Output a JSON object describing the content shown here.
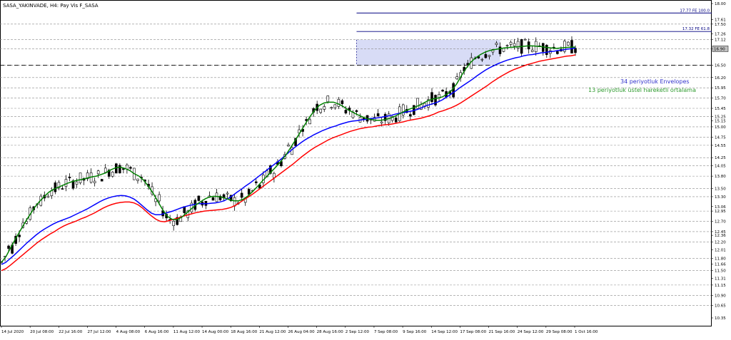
{
  "chart_data": {
    "type": "candlestick",
    "title": "SASA_YAKINVADE, H4: Pay Vis F_SASA",
    "y_axis": {
      "range": [
        10.35,
        18.0
      ],
      "ticks": [
        "18.00",
        "17.61",
        "17.50",
        "17.26",
        "17.12",
        "16.90",
        "16.50",
        "16.20",
        "15.95",
        "15.70",
        "15.45",
        "15.25",
        "15.15",
        "15.00",
        "14.75",
        "14.55",
        "14.25",
        "14.05",
        "13.80",
        "13.50",
        "13.30",
        "13.06",
        "12.95",
        "12.70",
        "12.45",
        "12.36",
        "12.20",
        "12.01",
        "11.80",
        "11.66",
        "11.50",
        "11.31",
        "11.15",
        "10.90",
        "10.65",
        "10.35"
      ],
      "dashed_levels": [
        17.5,
        17.12,
        16.9,
        16.5,
        16.2,
        15.95,
        15.7,
        15.45,
        15.25,
        15.0,
        14.75,
        14.55,
        14.25,
        14.05,
        13.8,
        13.5,
        13.3,
        12.95,
        12.7,
        12.45,
        12.2,
        11.8,
        11.5,
        11.15,
        10.9,
        10.65
      ]
    },
    "x_axis": {
      "labels": [
        "14 Jul 2020",
        "20 Jul 08:00",
        "22 Jul 16:00",
        "27 Jul 12:00",
        "4 Aug 08:00",
        "6 Aug 16:00",
        "11 Aug 12:00",
        "14 Aug 00:00",
        "18 Aug 16:00",
        "21 Aug 12:00",
        "26 Aug 04:00",
        "28 Aug 16:00",
        "2 Sep 12:00",
        "7 Sep 08:00",
        "9 Sep 16:00",
        "14 Sep 12:00",
        "17 Sep 08:00",
        "21 Sep 16:00",
        "24 Sep 12:00",
        "29 Sep 08:00",
        "1 Oct 16:00"
      ],
      "bar_count": 161
    },
    "series": [
      {
        "name": "34 periyotluk Envelopes",
        "color": "#0000ff",
        "values": [
          11.65,
          11.7,
          11.79,
          11.88,
          11.98,
          12.08,
          12.18,
          12.27,
          12.36,
          12.44,
          12.51,
          12.57,
          12.63,
          12.68,
          12.72,
          12.76,
          12.8,
          12.85,
          12.9,
          12.95,
          13.0,
          13.06,
          13.12,
          13.18,
          13.23,
          13.27,
          13.3,
          13.32,
          13.33,
          13.32,
          13.29,
          13.24,
          13.16,
          13.07,
          12.98,
          12.9,
          12.86,
          12.86,
          12.89,
          12.92,
          12.95,
          12.99,
          13.03,
          13.06,
          13.09,
          13.11,
          13.13,
          13.13,
          13.13,
          13.14,
          13.15,
          13.17,
          13.2,
          13.26,
          13.33,
          13.41,
          13.48,
          13.56,
          13.63,
          13.71,
          13.79,
          13.87,
          13.95,
          14.03,
          14.11,
          14.19,
          14.28,
          14.37,
          14.46,
          14.54,
          14.62,
          14.69,
          14.75,
          14.81,
          14.86,
          14.91,
          14.95,
          14.99,
          15.02,
          15.06,
          15.09,
          15.12,
          15.14,
          15.15,
          15.17,
          15.18,
          15.2,
          15.21,
          15.22,
          15.24,
          15.26,
          15.28,
          15.31,
          15.33,
          15.35,
          15.37,
          15.39,
          15.42,
          15.46,
          15.51,
          15.54,
          15.57,
          15.61,
          15.66,
          15.73,
          15.8,
          15.87,
          15.95,
          16.02,
          16.09,
          16.16,
          16.24,
          16.31,
          16.38,
          16.44,
          16.49,
          16.54,
          16.58,
          16.62,
          16.65,
          16.68,
          16.7,
          16.73,
          16.75,
          16.76,
          16.78,
          16.8,
          16.81,
          16.83,
          16.84,
          16.86,
          16.87,
          16.89,
          16.9,
          16.92
        ]
      },
      {
        "name": "",
        "color": "#ff0000",
        "values": [
          11.5,
          11.55,
          11.63,
          11.72,
          11.81,
          11.9,
          11.99,
          12.08,
          12.17,
          12.25,
          12.32,
          12.39,
          12.45,
          12.52,
          12.58,
          12.63,
          12.67,
          12.71,
          12.76,
          12.8,
          12.85,
          12.9,
          12.96,
          13.02,
          13.07,
          13.11,
          13.14,
          13.16,
          13.17,
          13.17,
          13.15,
          13.1,
          13.02,
          12.92,
          12.83,
          12.75,
          12.7,
          12.69,
          12.72,
          12.75,
          12.78,
          12.82,
          12.85,
          12.88,
          12.91,
          12.93,
          12.95,
          12.96,
          12.97,
          12.98,
          12.99,
          13.01,
          13.04,
          13.09,
          13.16,
          13.23,
          13.3,
          13.37,
          13.45,
          13.53,
          13.61,
          13.69,
          13.77,
          13.85,
          13.93,
          14.01,
          14.09,
          14.18,
          14.27,
          14.35,
          14.43,
          14.5,
          14.56,
          14.62,
          14.68,
          14.73,
          14.77,
          14.81,
          14.85,
          14.89,
          14.92,
          14.95,
          14.97,
          14.99,
          15.0,
          15.02,
          15.04,
          15.05,
          15.06,
          15.08,
          15.1,
          15.12,
          15.15,
          15.17,
          15.19,
          15.21,
          15.24,
          15.27,
          15.31,
          15.36,
          15.39,
          15.43,
          15.47,
          15.52,
          15.58,
          15.65,
          15.72,
          15.79,
          15.86,
          15.93,
          16.0,
          16.08,
          16.15,
          16.22,
          16.28,
          16.34,
          16.39,
          16.43,
          16.47,
          16.51,
          16.54,
          16.57,
          16.6,
          16.62,
          16.64,
          16.66,
          16.68,
          16.7,
          16.72,
          16.73,
          16.75
        ]
      },
      {
        "name": "13 periyotluk üstel hareketli ortalama",
        "color": "#008000",
        "values": [
          11.7,
          11.85,
          12.07,
          12.28,
          12.48,
          12.68,
          12.86,
          13.04,
          13.18,
          13.3,
          13.41,
          13.48,
          13.53,
          13.58,
          13.63,
          13.67,
          13.7,
          13.72,
          13.75,
          13.78,
          13.8,
          13.84,
          13.88,
          13.95,
          14.0,
          14.02,
          13.99,
          13.94,
          13.86,
          13.8,
          13.7,
          13.55,
          13.38,
          13.18,
          12.98,
          12.82,
          12.75,
          12.74,
          12.8,
          12.9,
          13.0,
          13.1,
          13.18,
          13.25,
          13.3,
          13.31,
          13.3,
          13.27,
          13.23,
          13.2,
          13.2,
          13.24,
          13.32,
          13.43,
          13.55,
          13.68,
          13.8,
          13.92,
          14.04,
          14.17,
          14.32,
          14.5,
          14.68,
          14.87,
          15.06,
          15.24,
          15.4,
          15.52,
          15.58,
          15.6,
          15.6,
          15.56,
          15.5,
          15.42,
          15.36,
          15.3,
          15.25,
          15.2,
          15.18,
          15.16,
          15.16,
          15.18,
          15.21,
          15.26,
          15.32,
          15.38,
          15.43,
          15.47,
          15.52,
          15.58,
          15.64,
          15.68,
          15.7,
          15.73,
          15.8,
          15.9,
          16.05,
          16.25,
          16.43,
          16.58,
          16.68,
          16.76,
          16.82,
          16.86,
          16.88,
          16.9,
          16.92,
          16.93,
          16.94,
          16.95,
          16.96,
          16.97,
          16.97,
          16.96,
          16.95,
          16.93,
          16.92,
          16.91,
          16.92,
          16.93,
          16.94,
          16.94
        ]
      }
    ],
    "annotations": [
      {
        "text": "17.77 FE 100.0",
        "value": 17.77
      },
      {
        "text": "17.32 FE 61.8",
        "value": 17.32
      },
      {
        "text": "34 periyotluk Envelopes"
      },
      {
        "text": "13 periyotluk üstel hareketli ortalama"
      }
    ],
    "current_price": "16.90",
    "shaded_zone": {
      "from": 16.5,
      "to": 17.12
    },
    "grid": true
  }
}
